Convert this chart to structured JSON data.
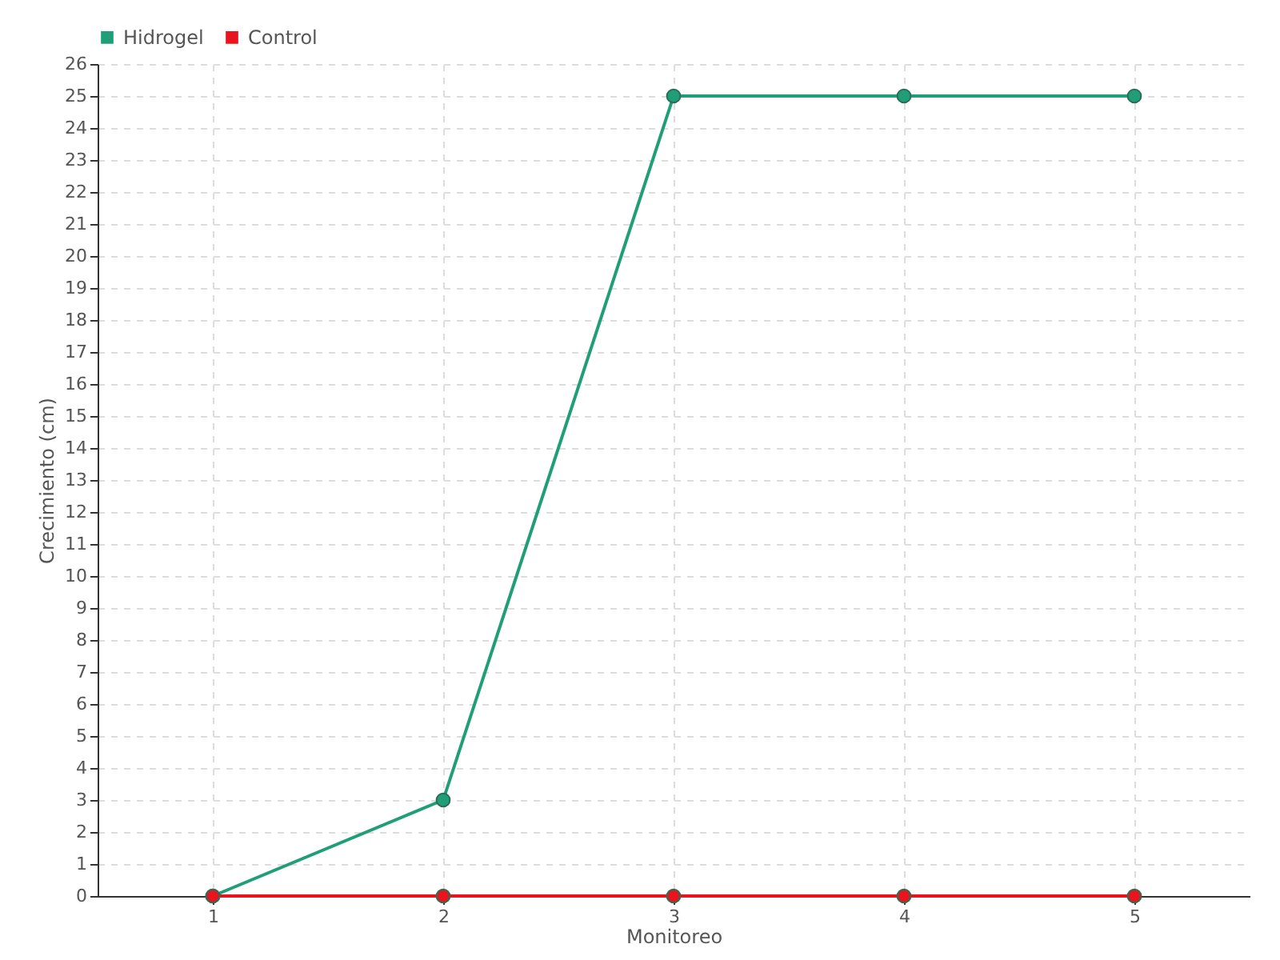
{
  "chart_data": {
    "type": "line",
    "xlabel": "Monitoreo",
    "ylabel": "Crecimiento (cm)",
    "categories": [
      "1",
      "2",
      "3",
      "4",
      "5"
    ],
    "series": [
      {
        "name": "Hidrogel",
        "color": "#1f9e78",
        "values": [
          0,
          3,
          25,
          25,
          25
        ]
      },
      {
        "name": "Control",
        "color": "#e8141e",
        "values": [
          0,
          0,
          0,
          0,
          0
        ]
      }
    ],
    "ylim": [
      0,
      26
    ],
    "yticks": [
      0,
      1,
      2,
      3,
      4,
      5,
      6,
      7,
      8,
      9,
      10,
      11,
      12,
      13,
      14,
      15,
      16,
      17,
      18,
      19,
      20,
      21,
      22,
      23,
      24,
      25,
      26
    ],
    "grid": true,
    "legend": "top left",
    "marker": "circle",
    "line_style": "solid"
  }
}
